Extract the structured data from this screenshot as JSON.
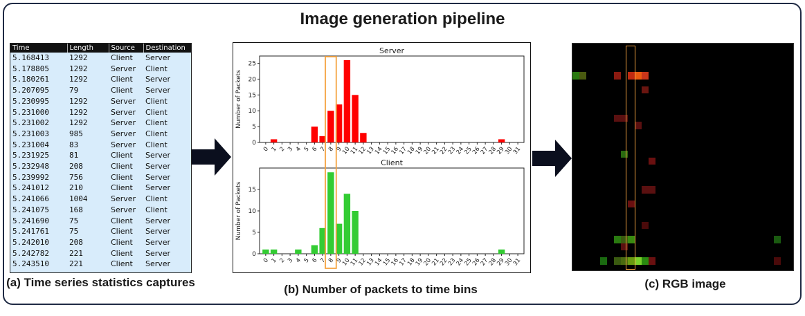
{
  "title": "Image generation pipeline",
  "captions": {
    "a": "(a) Time series statistics captures",
    "b": "(b) Number of packets to time bins",
    "c": "(c) RGB image"
  },
  "table": {
    "headers": [
      "Time",
      "Length",
      "Source",
      "Destination"
    ],
    "rows": [
      [
        "5.168413",
        "1292",
        "Client",
        "Server"
      ],
      [
        "5.178805",
        "1292",
        "Server",
        "Client"
      ],
      [
        "5.180261",
        "1292",
        "Client",
        "Server"
      ],
      [
        "5.207095",
        "79",
        "Client",
        "Server"
      ],
      [
        "5.230995",
        "1292",
        "Server",
        "Client"
      ],
      [
        "5.231000",
        "1292",
        "Server",
        "Client"
      ],
      [
        "5.231002",
        "1292",
        "Server",
        "Client"
      ],
      [
        "5.231003",
        "985",
        "Server",
        "Client"
      ],
      [
        "5.231004",
        "83",
        "Server",
        "Client"
      ],
      [
        "5.231925",
        "81",
        "Client",
        "Server"
      ],
      [
        "5.232948",
        "208",
        "Client",
        "Server"
      ],
      [
        "5.239992",
        "756",
        "Client",
        "Server"
      ],
      [
        "5.241012",
        "210",
        "Client",
        "Server"
      ],
      [
        "5.241066",
        "1004",
        "Server",
        "Client"
      ],
      [
        "5.241075",
        "168",
        "Server",
        "Client"
      ],
      [
        "5.241690",
        "75",
        "Client",
        "Server"
      ],
      [
        "5.241761",
        "75",
        "Client",
        "Server"
      ],
      [
        "5.242010",
        "208",
        "Client",
        "Server"
      ],
      [
        "5.242782",
        "221",
        "Client",
        "Server"
      ],
      [
        "5.243510",
        "221",
        "Client",
        "Server"
      ]
    ]
  },
  "chart_data": [
    {
      "type": "bar",
      "title": "Server",
      "ylabel": "Number of Packets",
      "color": "#ff0000",
      "categories": [
        "0",
        "1",
        "2",
        "3",
        "4",
        "5",
        "6",
        "7",
        "8",
        "9",
        "10",
        "11",
        "12",
        "13",
        "14",
        "15",
        "16",
        "17",
        "18",
        "19",
        "20",
        "21",
        "22",
        "23",
        "24",
        "25",
        "26",
        "27",
        "28",
        "29",
        "30",
        "31"
      ],
      "values": [
        0,
        1,
        0,
        0,
        0,
        0,
        5,
        2,
        10,
        12,
        26,
        15,
        3,
        0,
        0,
        0,
        0,
        0,
        0,
        0,
        0,
        0,
        0,
        0,
        0,
        0,
        0,
        0,
        0,
        1,
        0,
        0
      ],
      "yticks": [
        0,
        5,
        10,
        15,
        20,
        25
      ],
      "ylim": [
        0,
        27.3
      ],
      "highlight_bin": "8",
      "highlight_color": "#f5a340"
    },
    {
      "type": "bar",
      "title": "Client",
      "ylabel": "Number of Packets",
      "color": "#33cc33",
      "categories": [
        "0",
        "1",
        "2",
        "3",
        "4",
        "5",
        "6",
        "7",
        "8",
        "9",
        "10",
        "11",
        "12",
        "13",
        "14",
        "15",
        "16",
        "17",
        "18",
        "19",
        "20",
        "21",
        "22",
        "23",
        "24",
        "25",
        "26",
        "27",
        "28",
        "29",
        "30",
        "31"
      ],
      "values": [
        1,
        1,
        0,
        0,
        1,
        0,
        2,
        6,
        19,
        7,
        14,
        10,
        0,
        0,
        0,
        0,
        0,
        0,
        0,
        0,
        0,
        0,
        0,
        0,
        0,
        0,
        0,
        0,
        0,
        1,
        0,
        0
      ],
      "yticks": [
        0,
        5,
        10,
        15
      ],
      "ylim": [
        0,
        20
      ],
      "highlight_bin": "8",
      "highlight_color": "#f5a340"
    }
  ],
  "rgb_image": {
    "grid": [
      32,
      32
    ],
    "background": "#000000",
    "highlight_column": 8,
    "highlight_color": "#f5a340",
    "cells": [
      {
        "col": 0,
        "row": 4,
        "color": "#2a7a10"
      },
      {
        "col": 1,
        "row": 4,
        "color": "#4a5a10"
      },
      {
        "col": 6,
        "row": 4,
        "color": "#8a1a10"
      },
      {
        "col": 8,
        "row": 4,
        "color": "#c02a10"
      },
      {
        "col": 9,
        "row": 4,
        "color": "#e85a10"
      },
      {
        "col": 10,
        "row": 4,
        "color": "#c8361a"
      },
      {
        "col": 10,
        "row": 6,
        "color": "#6a1510"
      },
      {
        "col": 6,
        "row": 10,
        "color": "#5a1010"
      },
      {
        "col": 7,
        "row": 10,
        "color": "#5a1010"
      },
      {
        "col": 9,
        "row": 11,
        "color": "#5a1010"
      },
      {
        "col": 7,
        "row": 15,
        "color": "#2a6a10"
      },
      {
        "col": 11,
        "row": 16,
        "color": "#6a1010"
      },
      {
        "col": 10,
        "row": 20,
        "color": "#5a1010"
      },
      {
        "col": 11,
        "row": 20,
        "color": "#5a1010"
      },
      {
        "col": 8,
        "row": 22,
        "color": "#6a1010"
      },
      {
        "col": 10,
        "row": 25,
        "color": "#4a0a0a"
      },
      {
        "col": 6,
        "row": 27,
        "color": "#2a7a10"
      },
      {
        "col": 7,
        "row": 27,
        "color": "#3a5a10"
      },
      {
        "col": 8,
        "row": 27,
        "color": "#3a8a10"
      },
      {
        "col": 29,
        "row": 27,
        "color": "#1a5a10"
      },
      {
        "col": 7,
        "row": 28,
        "color": "#5a1010"
      },
      {
        "col": 4,
        "row": 30,
        "color": "#1a6a10"
      },
      {
        "col": 6,
        "row": 30,
        "color": "#3a5a10"
      },
      {
        "col": 7,
        "row": 30,
        "color": "#4a6a10"
      },
      {
        "col": 8,
        "row": 30,
        "color": "#6a9a10"
      },
      {
        "col": 9,
        "row": 30,
        "color": "#7ad02a"
      },
      {
        "col": 10,
        "row": 30,
        "color": "#2a8a10"
      },
      {
        "col": 11,
        "row": 30,
        "color": "#6a1010"
      },
      {
        "col": 29,
        "row": 30,
        "color": "#4a0a0a"
      }
    ]
  }
}
